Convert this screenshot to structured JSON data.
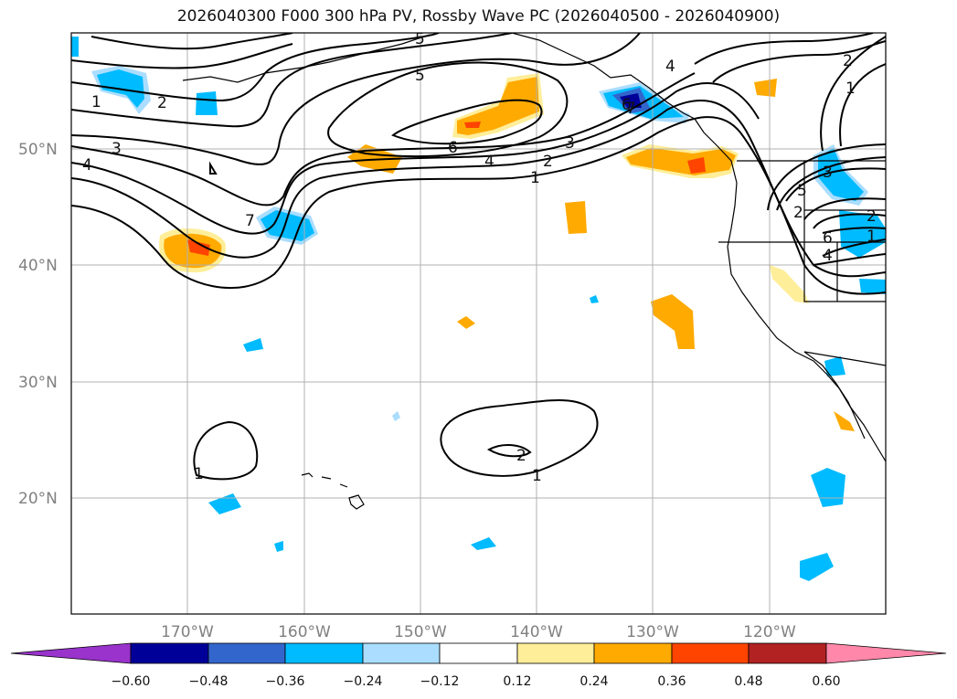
{
  "title": "2026040300 F000 300 hPa PV, Rossby Wave PC (2026040500 - 2026040900)",
  "map": {
    "lon_range": [
      -180,
      -110
    ],
    "lat_range": [
      10,
      60
    ],
    "lat_ticks": [
      {
        "label": "50°N",
        "lat": 50
      },
      {
        "label": "40°N",
        "lat": 40
      },
      {
        "label": "30°N",
        "lat": 30
      },
      {
        "label": "20°N",
        "lat": 20
      }
    ],
    "lon_ticks": [
      {
        "label": "170°W",
        "lon": -170
      },
      {
        "label": "160°W",
        "lon": -160
      },
      {
        "label": "150°W",
        "lon": -150
      },
      {
        "label": "140°W",
        "lon": -140
      },
      {
        "label": "130°W",
        "lon": -130
      },
      {
        "label": "120°W",
        "lon": -120
      }
    ],
    "grid": true,
    "contour_labels": [
      "1",
      "2",
      "3",
      "4",
      "5",
      "6",
      "7",
      "1",
      "2",
      "3",
      "4",
      "5",
      "6",
      "1",
      "2",
      "3",
      "4",
      "5",
      "6",
      "1",
      "2",
      "1",
      "2",
      "7",
      "4",
      "2",
      "1"
    ]
  },
  "colorbar": {
    "tick_labels": [
      "−0.60",
      "−0.48",
      "−0.36",
      "−0.24",
      "−0.12",
      "0.12",
      "0.24",
      "0.36",
      "0.48",
      "0.60"
    ],
    "colors": [
      "#9933cc",
      "#000099",
      "#3366cc",
      "#00bbff",
      "#aaddff",
      "#ffffff",
      "#ffee99",
      "#ffaa00",
      "#ff4400",
      "#b22222",
      "#ff88aa"
    ]
  }
}
